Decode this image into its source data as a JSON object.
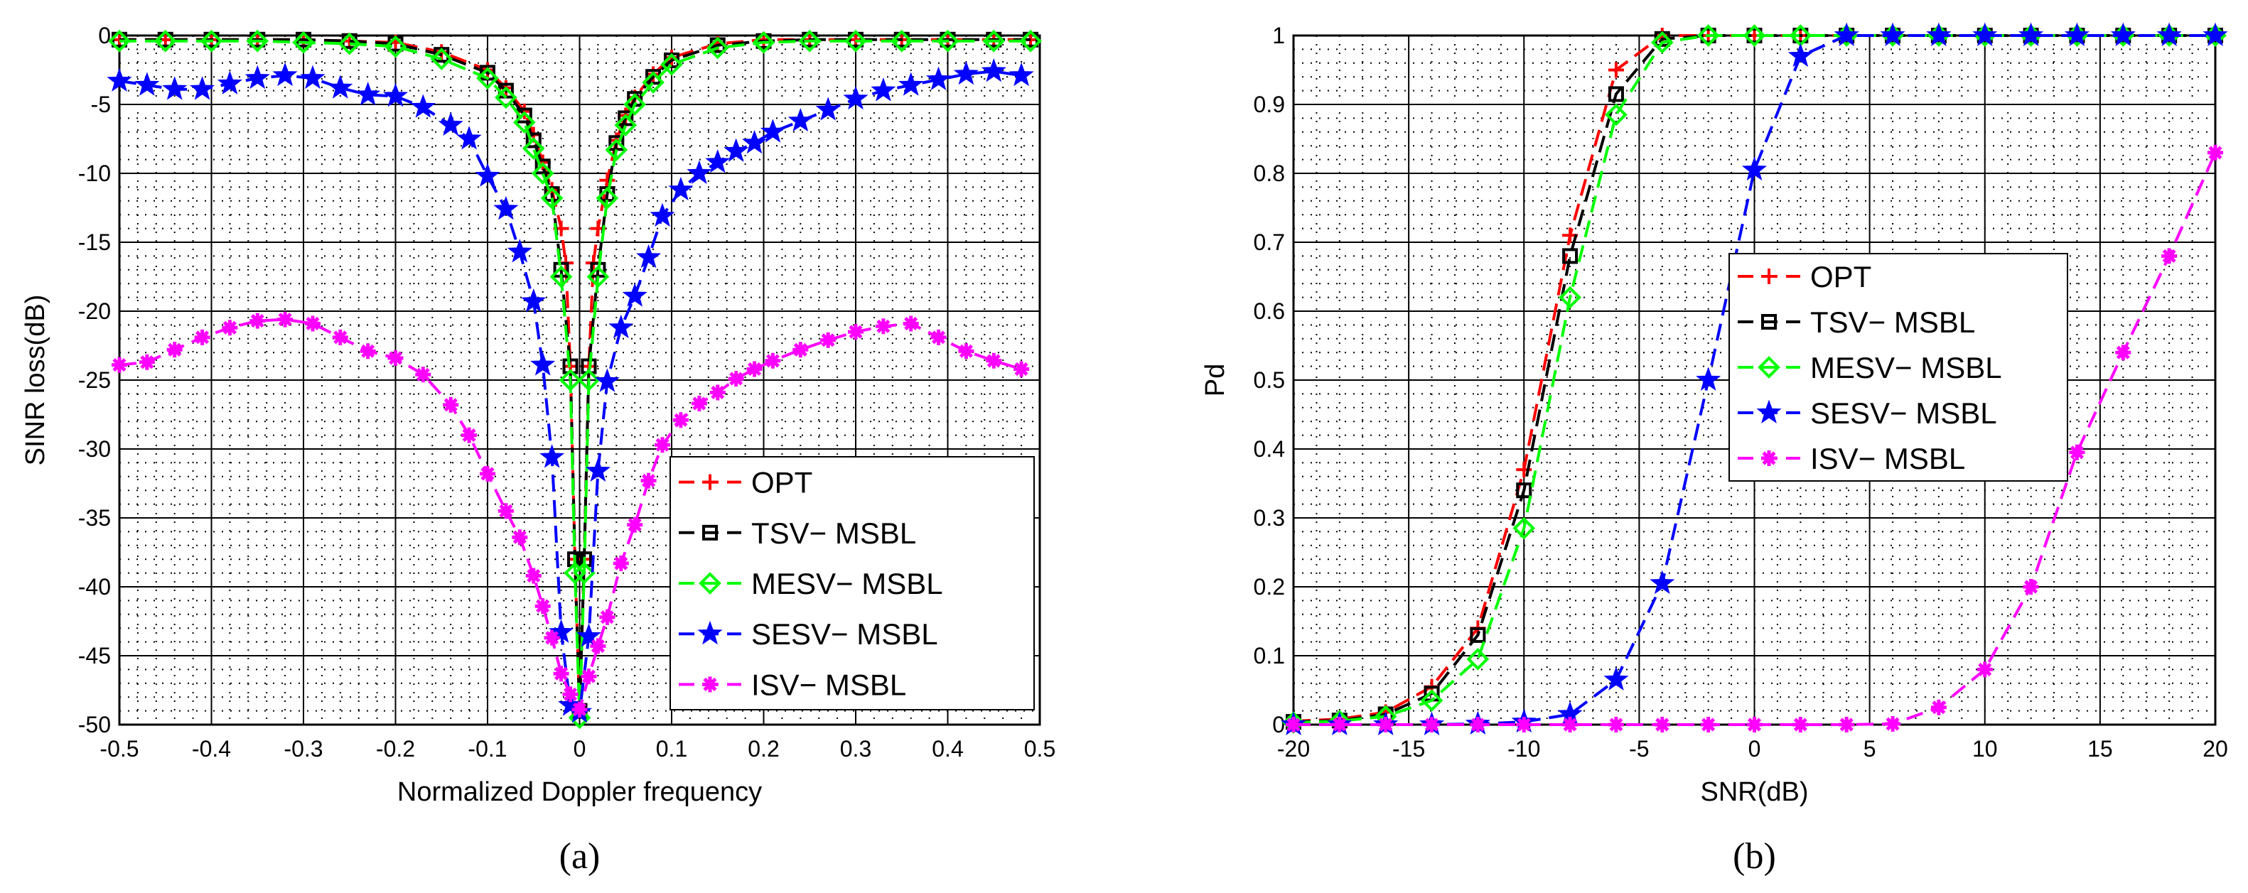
{
  "charts": [
    {
      "type": "line",
      "caption": "(a)",
      "xlabel": "Normalized Doppler frequency",
      "ylabel": "SINR loss(dB)",
      "xlim": [
        -0.5,
        0.5
      ],
      "ylim": [
        -50,
        0
      ],
      "xticks": [
        -0.5,
        -0.4,
        -0.3,
        -0.2,
        -0.1,
        0,
        0.1,
        0.2,
        0.3,
        0.4,
        0.5
      ],
      "xtick_labels": [
        "-0.5",
        "-0.4",
        "-0.3",
        "-0.2",
        "-0.1",
        "0",
        "0.1",
        "0.2",
        "0.3",
        "0.4",
        "0.5"
      ],
      "yticks": [
        0,
        -5,
        -10,
        -15,
        -20,
        -25,
        -30,
        -35,
        -40,
        -45,
        -50
      ],
      "ytick_labels": [
        "0",
        "-5",
        "-10",
        "-15",
        "-20",
        "-25",
        "-30",
        "-35",
        "-40",
        "-45",
        "-50"
      ],
      "grid": true,
      "legend_position": "bottom-right",
      "series": [
        {
          "name": "OPT",
          "color": "#ff0000",
          "marker": "plus",
          "x": [
            -0.5,
            -0.45,
            -0.4,
            -0.35,
            -0.3,
            -0.25,
            -0.2,
            -0.15,
            -0.1,
            -0.08,
            -0.06,
            -0.05,
            -0.04,
            -0.03,
            -0.02,
            -0.015,
            -0.01,
            -0.005,
            0,
            0.005,
            0.01,
            0.015,
            0.02,
            0.03,
            0.04,
            0.05,
            0.06,
            0.08,
            0.1,
            0.15,
            0.2,
            0.25,
            0.3,
            0.35,
            0.4,
            0.45,
            0.49
          ],
          "y": [
            -0.3,
            -0.3,
            -0.3,
            -0.3,
            -0.3,
            -0.4,
            -0.5,
            -1.2,
            -2.5,
            -3.8,
            -5.5,
            -7.2,
            -9.2,
            -11.2,
            -14,
            -16.5,
            -24,
            -38,
            -49,
            -38,
            -24,
            -16.5,
            -14,
            -10.5,
            -7.6,
            -5.8,
            -4.5,
            -2.8,
            -1.6,
            -0.6,
            -0.3,
            -0.3,
            -0.3,
            -0.3,
            -0.3,
            -0.3,
            -0.3
          ]
        },
        {
          "name": "TSV− MSBL",
          "color": "#000000",
          "marker": "square",
          "x": [
            -0.5,
            -0.45,
            -0.4,
            -0.35,
            -0.3,
            -0.25,
            -0.2,
            -0.15,
            -0.1,
            -0.08,
            -0.06,
            -0.05,
            -0.04,
            -0.03,
            -0.02,
            -0.01,
            -0.005,
            0,
            0.005,
            0.01,
            0.02,
            0.03,
            0.04,
            0.05,
            0.06,
            0.08,
            0.1,
            0.15,
            0.2,
            0.25,
            0.3,
            0.35,
            0.4,
            0.45,
            0.49
          ],
          "y": [
            -0.3,
            -0.3,
            -0.3,
            -0.3,
            -0.3,
            -0.4,
            -0.6,
            -1.4,
            -2.7,
            -4,
            -5.8,
            -7.6,
            -9.5,
            -11.5,
            -17,
            -24,
            -38,
            -49,
            -38,
            -24,
            -17,
            -11.5,
            -7.8,
            -6,
            -4.6,
            -3,
            -1.8,
            -0.7,
            -0.4,
            -0.3,
            -0.3,
            -0.3,
            -0.3,
            -0.3,
            -0.3
          ]
        },
        {
          "name": "MESV− MSBL",
          "color": "#00ff00",
          "marker": "diamond",
          "x": [
            -0.5,
            -0.45,
            -0.4,
            -0.35,
            -0.3,
            -0.25,
            -0.2,
            -0.15,
            -0.1,
            -0.08,
            -0.06,
            -0.05,
            -0.04,
            -0.03,
            -0.02,
            -0.01,
            -0.005,
            0,
            0.005,
            0.01,
            0.02,
            0.03,
            0.04,
            0.05,
            0.06,
            0.08,
            0.1,
            0.15,
            0.2,
            0.25,
            0.3,
            0.35,
            0.4,
            0.45,
            0.49
          ],
          "y": [
            -0.4,
            -0.4,
            -0.4,
            -0.4,
            -0.5,
            -0.6,
            -0.8,
            -1.7,
            -3.1,
            -4.5,
            -6.3,
            -8.2,
            -10,
            -11.8,
            -17.5,
            -25,
            -39,
            -49.5,
            -39,
            -25,
            -17.5,
            -11.8,
            -8.3,
            -6.5,
            -5,
            -3.4,
            -2.1,
            -0.9,
            -0.5,
            -0.4,
            -0.4,
            -0.4,
            -0.4,
            -0.4,
            -0.4
          ]
        },
        {
          "name": "SESV− MSBL",
          "color": "#0000ff",
          "marker": "star",
          "x": [
            -0.5,
            -0.47,
            -0.44,
            -0.41,
            -0.38,
            -0.35,
            -0.32,
            -0.29,
            -0.26,
            -0.23,
            -0.2,
            -0.17,
            -0.14,
            -0.12,
            -0.1,
            -0.08,
            -0.065,
            -0.05,
            -0.04,
            -0.03,
            -0.02,
            -0.01,
            0,
            0.01,
            0.02,
            0.03,
            0.045,
            0.06,
            0.075,
            0.09,
            0.11,
            0.13,
            0.15,
            0.17,
            0.19,
            0.21,
            0.24,
            0.27,
            0.3,
            0.33,
            0.36,
            0.39,
            0.42,
            0.45,
            0.48
          ],
          "y": [
            -3.3,
            -3.6,
            -3.9,
            -3.9,
            -3.5,
            -3.1,
            -2.9,
            -3.1,
            -3.8,
            -4.3,
            -4.4,
            -5.2,
            -6.5,
            -7.5,
            -10.2,
            -12.6,
            -15.7,
            -19.3,
            -23.9,
            -30.6,
            -43.3,
            -48.6,
            -49.1,
            -43.6,
            -31.6,
            -25.1,
            -21.2,
            -18.9,
            -16.1,
            -13.1,
            -11.2,
            -10,
            -9.2,
            -8.4,
            -7.8,
            -7,
            -6.2,
            -5.4,
            -4.6,
            -4,
            -3.6,
            -3.2,
            -2.8,
            -2.6,
            -2.9
          ]
        },
        {
          "name": "ISV− MSBL",
          "color": "#ff00ff",
          "marker": "asterisk",
          "x": [
            -0.5,
            -0.47,
            -0.44,
            -0.41,
            -0.38,
            -0.35,
            -0.32,
            -0.29,
            -0.26,
            -0.23,
            -0.2,
            -0.17,
            -0.14,
            -0.12,
            -0.1,
            -0.08,
            -0.065,
            -0.05,
            -0.04,
            -0.03,
            -0.02,
            -0.01,
            0,
            0.01,
            0.02,
            0.03,
            0.045,
            0.06,
            0.075,
            0.09,
            0.11,
            0.13,
            0.15,
            0.17,
            0.19,
            0.21,
            0.24,
            0.27,
            0.3,
            0.33,
            0.36,
            0.39,
            0.42,
            0.45,
            0.48
          ],
          "y": [
            -23.9,
            -23.7,
            -22.8,
            -21.9,
            -21.2,
            -20.7,
            -20.6,
            -20.9,
            -21.9,
            -22.9,
            -23.4,
            -24.6,
            -26.8,
            -29,
            -31.8,
            -34.5,
            -36.4,
            -39.2,
            -41.4,
            -43.7,
            -46.3,
            -47.8,
            -48.9,
            -46.5,
            -44.3,
            -42.2,
            -38.3,
            -35.5,
            -32.3,
            -29.7,
            -27.9,
            -26.7,
            -25.9,
            -24.9,
            -24.2,
            -23.6,
            -22.8,
            -22.1,
            -21.5,
            -21.1,
            -20.9,
            -21.9,
            -22.9,
            -23.6,
            -24.2
          ]
        }
      ]
    },
    {
      "type": "line",
      "caption": "(b)",
      "xlabel": "SNR(dB)",
      "ylabel": "Pd",
      "xlim": [
        -20,
        20
      ],
      "ylim": [
        0,
        1
      ],
      "xticks": [
        -20,
        -15,
        -10,
        -5,
        0,
        5,
        10,
        15,
        20
      ],
      "xtick_labels": [
        "-20",
        "-15",
        "-10",
        "-5",
        "0",
        "5",
        "10",
        "15",
        "20"
      ],
      "yticks": [
        0,
        0.1,
        0.2,
        0.3,
        0.4,
        0.5,
        0.6,
        0.7,
        0.8,
        0.9,
        1
      ],
      "ytick_labels": [
        "0",
        "0.1",
        "0.2",
        "0.3",
        "0.4",
        "0.5",
        "0.6",
        "0.7",
        "0.8",
        "0.9",
        "1"
      ],
      "grid": true,
      "legend_position": "center",
      "series": [
        {
          "name": "OPT",
          "color": "#ff0000",
          "marker": "plus",
          "x": [
            -20,
            -18,
            -16,
            -14,
            -12,
            -10,
            -8,
            -6,
            -4,
            -2,
            0,
            2,
            4,
            6,
            8,
            10,
            12,
            14,
            16,
            18,
            20
          ],
          "y": [
            0.005,
            0.008,
            0.018,
            0.055,
            0.14,
            0.37,
            0.71,
            0.95,
            1,
            1,
            1,
            1,
            1,
            1,
            1,
            1,
            1,
            1,
            1,
            1,
            1
          ]
        },
        {
          "name": "TSV− MSBL",
          "color": "#000000",
          "marker": "square",
          "x": [
            -20,
            -18,
            -16,
            -14,
            -12,
            -10,
            -8,
            -6,
            -4,
            -2,
            0,
            2,
            4,
            6,
            8,
            10,
            12,
            14,
            16,
            18,
            20
          ],
          "y": [
            0.004,
            0.006,
            0.015,
            0.045,
            0.13,
            0.34,
            0.68,
            0.915,
            0.995,
            1,
            1,
            1,
            1,
            1,
            1,
            1,
            1,
            1,
            1,
            1,
            1
          ]
        },
        {
          "name": "MESV− MSBL",
          "color": "#00ff00",
          "marker": "diamond",
          "x": [
            -20,
            -18,
            -16,
            -14,
            -12,
            -10,
            -8,
            -6,
            -4,
            -2,
            0,
            2,
            4,
            6,
            8,
            10,
            12,
            14,
            16,
            18,
            20
          ],
          "y": [
            0.003,
            0.005,
            0.012,
            0.035,
            0.095,
            0.285,
            0.62,
            0.885,
            0.99,
            1,
            1,
            1,
            1,
            1,
            1,
            1,
            1,
            1,
            1,
            1,
            1
          ]
        },
        {
          "name": "SESV− MSBL",
          "color": "#0000ff",
          "marker": "star",
          "x": [
            -20,
            -18,
            -16,
            -14,
            -12,
            -10,
            -8,
            -6,
            -4,
            -2,
            0,
            2,
            4,
            6,
            8,
            10,
            12,
            14,
            16,
            18,
            20
          ],
          "y": [
            0,
            0,
            0,
            0,
            0.001,
            0.004,
            0.015,
            0.065,
            0.205,
            0.5,
            0.805,
            0.97,
            1,
            1,
            1,
            1,
            1,
            1,
            1,
            1,
            1
          ]
        },
        {
          "name": "ISV− MSBL",
          "color": "#ff00ff",
          "marker": "asterisk",
          "x": [
            -20,
            -18,
            -16,
            -14,
            -12,
            -10,
            -8,
            -6,
            -4,
            -2,
            0,
            2,
            4,
            6,
            8,
            10,
            12,
            14,
            16,
            18,
            20
          ],
          "y": [
            0,
            0,
            0,
            0,
            0,
            0,
            0,
            0,
            0,
            0,
            0,
            0,
            0,
            0.001,
            0.025,
            0.08,
            0.2,
            0.395,
            0.54,
            0.68,
            0.83
          ]
        }
      ]
    }
  ]
}
